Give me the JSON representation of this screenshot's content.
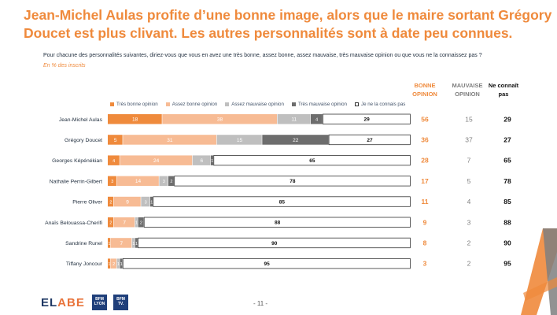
{
  "title": {
    "line1": "Jean-Michel Aulas profite d’une bonne image, alors que le maire sortant Grégory",
    "line2": "Doucet est plus clivant. Les autres personnalités sont à date peu connues."
  },
  "question": "Pour chacune des personnalités suivantes, diriez-vous que vous en avez une très bonne, assez bonne, assez mauvaise, très mauvaise opinion ou que vous ne la connaissez pas ?",
  "unit": "En % des inscrits",
  "columns": {
    "good_line1": "BONNE",
    "good_line2": "OPINION",
    "bad_line1": "MAUVAISE",
    "bad_line2": "OPINION",
    "unknown_line1": "Ne connaît",
    "unknown_line2": "pas"
  },
  "colors": {
    "tres_bonne": "#ef8a3c",
    "assez_bonne": "#f7bb94",
    "assez_mauvaise": "#bfbfbf",
    "tres_mauvaise": "#6d6d6d",
    "ne_connais_pas": "#ffffff",
    "good_text": "#ef8a3c",
    "bad_text": "#7f7f7f"
  },
  "chart_data": {
    "type": "bar",
    "orientation": "horizontal",
    "stacked": true,
    "categories": [
      "Jean-Michel Aulas",
      "Grégory Doucet",
      "Georges Képénékian",
      "Nathalie Perrin-Gilbert",
      "Pierre Oliver",
      "Anaïs Belouassa-Cherifi",
      "Sandrine Runel",
      "Tiffany Joncour"
    ],
    "series": [
      {
        "name": "Très bonne opinion",
        "values": [
          18,
          5,
          4,
          3,
          2,
          2,
          1,
          1
        ]
      },
      {
        "name": "Assez bonne opinion",
        "values": [
          38,
          31,
          24,
          14,
          9,
          7,
          7,
          2
        ]
      },
      {
        "name": "Assez mauvaise opinion",
        "values": [
          11,
          15,
          6,
          3,
          3,
          1,
          1,
          1
        ]
      },
      {
        "name": "Très mauvaise opinion",
        "values": [
          4,
          22,
          1,
          2,
          1,
          2,
          1,
          1
        ]
      },
      {
        "name": "Je ne la connais pas",
        "values": [
          29,
          27,
          65,
          78,
          85,
          88,
          90,
          95
        ]
      }
    ],
    "summary": {
      "bonne_opinion": [
        56,
        36,
        28,
        17,
        11,
        9,
        8,
        3
      ],
      "mauvaise_opinion": [
        15,
        37,
        7,
        5,
        4,
        3,
        2,
        2
      ],
      "ne_connait_pas": [
        29,
        27,
        65,
        78,
        85,
        88,
        90,
        95
      ]
    },
    "xlim": [
      0,
      100
    ],
    "legend_position": "top"
  },
  "footer": {
    "brand_part1": "EL",
    "brand_part2": "ABE",
    "bfm1_line1": "BFM",
    "bfm1_line2": "LYON",
    "bfm2_line1": "BFM",
    "bfm2_line2": "TV.",
    "page": "- 11 -"
  }
}
